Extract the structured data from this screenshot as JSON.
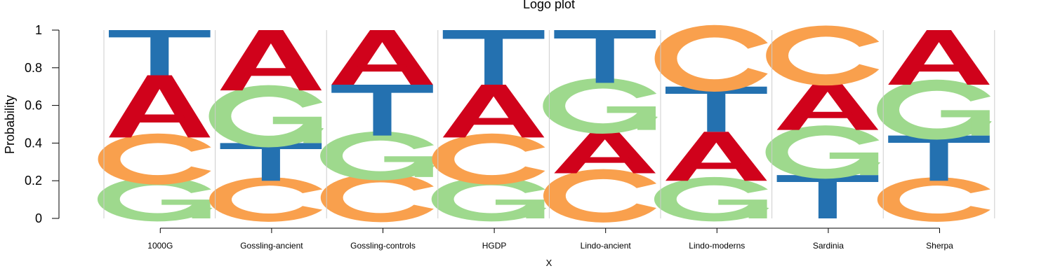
{
  "chart_data": {
    "type": "logo",
    "title": "Logo plot",
    "xlabel": "X",
    "ylabel": "Probability",
    "ylim": [
      0,
      1
    ],
    "yticks": [
      "0",
      "0.2",
      "0.4",
      "0.6",
      "0.8",
      "1"
    ],
    "categories": [
      "1000G",
      "Gossling-ancient",
      "Gossling-controls",
      "HGDP",
      "Lindo-ancient",
      "Lindo-moderns",
      "Sardinia",
      "Sherpa"
    ],
    "stacks": [
      [
        {
          "letter": "G",
          "value": 0.2
        },
        {
          "letter": "C",
          "value": 0.23
        },
        {
          "letter": "A",
          "value": 0.33
        },
        {
          "letter": "T",
          "value": 0.24
        }
      ],
      [
        {
          "letter": "C",
          "value": 0.2
        },
        {
          "letter": "T",
          "value": 0.2
        },
        {
          "letter": "G",
          "value": 0.28
        },
        {
          "letter": "A",
          "value": 0.32
        }
      ],
      [
        {
          "letter": "C",
          "value": 0.22
        },
        {
          "letter": "G",
          "value": 0.22
        },
        {
          "letter": "T",
          "value": 0.27
        },
        {
          "letter": "A",
          "value": 0.29
        }
      ],
      [
        {
          "letter": "G",
          "value": 0.2
        },
        {
          "letter": "C",
          "value": 0.23
        },
        {
          "letter": "A",
          "value": 0.28
        },
        {
          "letter": "T",
          "value": 0.29
        }
      ],
      [
        {
          "letter": "C",
          "value": 0.24
        },
        {
          "letter": "A",
          "value": 0.23
        },
        {
          "letter": "G",
          "value": 0.25
        },
        {
          "letter": "T",
          "value": 0.28
        }
      ],
      [
        {
          "letter": "G",
          "value": 0.2
        },
        {
          "letter": "A",
          "value": 0.26
        },
        {
          "letter": "T",
          "value": 0.24
        },
        {
          "letter": "C",
          "value": 0.3
        }
      ],
      [
        {
          "letter": "T",
          "value": 0.23
        },
        {
          "letter": "G",
          "value": 0.24
        },
        {
          "letter": "A",
          "value": 0.26
        },
        {
          "letter": "C",
          "value": 0.27
        }
      ],
      [
        {
          "letter": "C",
          "value": 0.2
        },
        {
          "letter": "T",
          "value": 0.24
        },
        {
          "letter": "G",
          "value": 0.27
        },
        {
          "letter": "A",
          "value": 0.29
        }
      ]
    ],
    "letter_colors": {
      "A": "#d0021b",
      "C": "#f9a04d",
      "G": "#9ed98d",
      "T": "#2471b0"
    },
    "grid": "vertical separators",
    "legend": "none"
  }
}
